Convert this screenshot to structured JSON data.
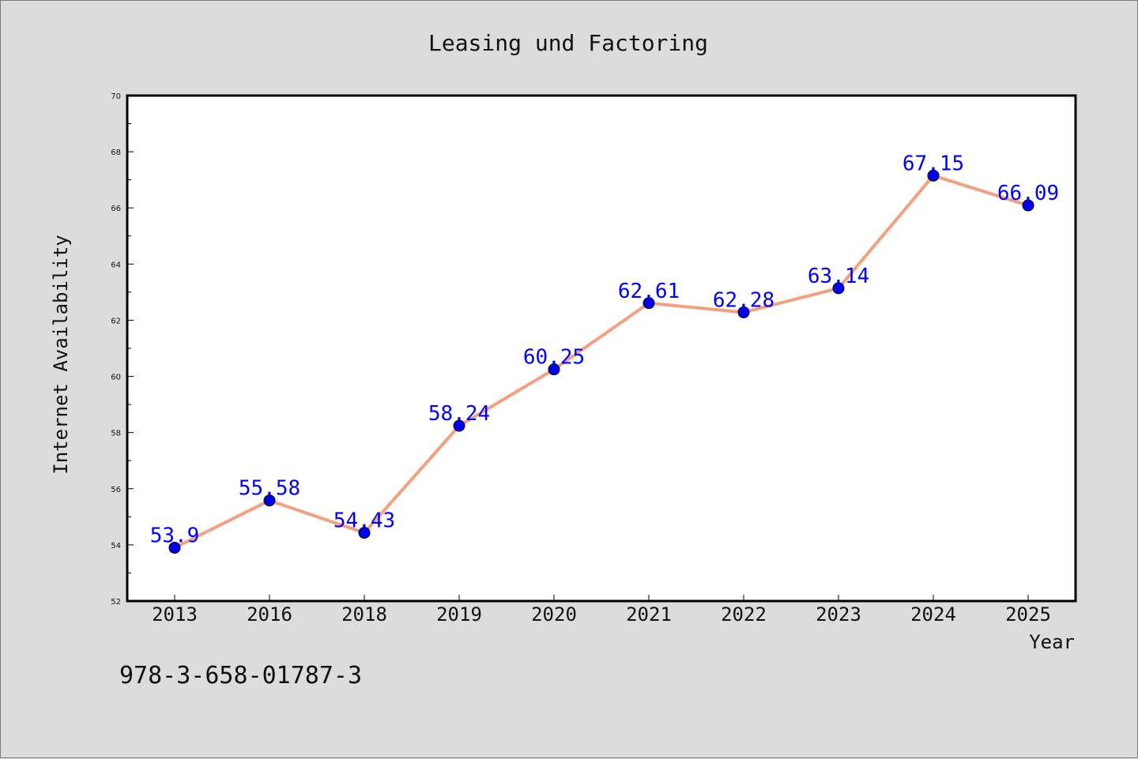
{
  "chart_data": {
    "type": "line",
    "title": "Leasing und Factoring",
    "xlabel": "Year",
    "ylabel": "Internet Availability",
    "categories": [
      "2013",
      "2016",
      "2018",
      "2019",
      "2020",
      "2021",
      "2022",
      "2023",
      "2024",
      "2025"
    ],
    "series": [
      {
        "values": [
          53.9,
          55.58,
          54.43,
          58.24,
          60.25,
          62.61,
          62.28,
          63.14,
          67.15,
          66.09
        ],
        "data_labels": [
          "53.9",
          "55.58",
          "54.43",
          "58.24",
          "60.25",
          "62.61",
          "62.28",
          "63.14",
          "67.15",
          "66.09"
        ],
        "line_color": "#f4a07f",
        "marker_color": "#0000ee"
      }
    ],
    "ylim": [
      52,
      70
    ],
    "yticks": [
      "52",
      "54",
      "56",
      "58",
      "60",
      "62",
      "64",
      "66",
      "68",
      "70"
    ],
    "grid": false,
    "legend": "none"
  },
  "annotation": "978-3-658-01787-3"
}
